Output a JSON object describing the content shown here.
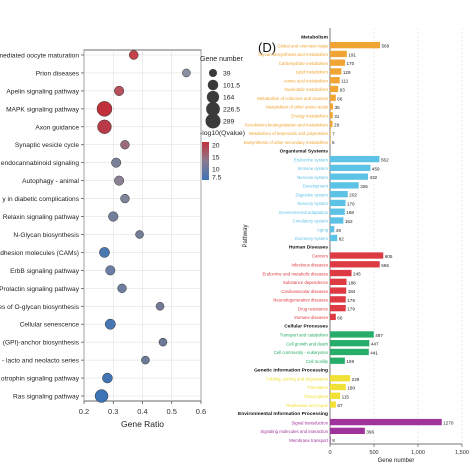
{
  "chart_data": [
    {
      "type": "scatter",
      "xlabel": "Gene Ratio",
      "xlim": [
        0.2,
        0.6
      ],
      "xticks": [
        "0.2",
        "0.3",
        "0.4",
        "0.5",
        "0.6"
      ],
      "grid": true,
      "legend_size": {
        "title": "Gene number",
        "entries": [
          {
            "label": "39",
            "value": 39
          },
          {
            "label": "101.5",
            "value": 101.5
          },
          {
            "label": "164",
            "value": 164
          },
          {
            "label": "226.5",
            "value": 226.5
          },
          {
            "label": "289",
            "value": 289
          }
        ]
      },
      "legend_color": {
        "title": "-log10(Qvalue)",
        "ticks": [
          "20",
          "15",
          "10",
          "7.5"
        ],
        "low_color": "#3b74b6",
        "high_color": "#c0313b"
      },
      "points": [
        {
          "pathway": "mediated oocyte maturation",
          "ratio": 0.37,
          "size": 60,
          "color": "#c4434a"
        },
        {
          "pathway": "Prion diseases",
          "ratio": 0.55,
          "size": 39,
          "color": "#8a8fa2"
        },
        {
          "pathway": "Apelin signaling pathway",
          "ratio": 0.32,
          "size": 75,
          "color": "#b5505c"
        },
        {
          "pathway": "MAPK signaling pathway",
          "ratio": 0.27,
          "size": 289,
          "color": "#c0313b"
        },
        {
          "pathway": "Axon guidance",
          "ratio": 0.27,
          "size": 230,
          "color": "#b83a48"
        },
        {
          "pathway": "Synaptic vesicle cycle",
          "ratio": 0.34,
          "size": 55,
          "color": "#9a6b78"
        },
        {
          "pathway": "endocannabinoid signaling",
          "ratio": 0.31,
          "size": 70,
          "color": "#7a8099"
        },
        {
          "pathway": "Autophagy - animal",
          "ratio": 0.32,
          "size": 70,
          "color": "#8a8196"
        },
        {
          "pathway": "y in diabetic complications",
          "ratio": 0.34,
          "size": 55,
          "color": "#7f8599"
        },
        {
          "pathway": "Relaxin signaling pathway",
          "ratio": 0.3,
          "size": 75,
          "color": "#737e9a"
        },
        {
          "pathway": "N-Glycan biosynthesis",
          "ratio": 0.39,
          "size": 39,
          "color": "#747d98"
        },
        {
          "pathway": "dhesion molecules (CAMs)",
          "ratio": 0.27,
          "size": 90,
          "color": "#4a78b0"
        },
        {
          "pathway": "ErbB signaling pathway",
          "ratio": 0.29,
          "size": 70,
          "color": "#6b7fa6"
        },
        {
          "pathway": "Prolactin signaling pathway",
          "ratio": 0.33,
          "size": 55,
          "color": "#6e7ea0"
        },
        {
          "pathway": "es of O-glycan biosynthesis",
          "ratio": 0.46,
          "size": 39,
          "color": "#727b96"
        },
        {
          "pathway": "Cellular senescence",
          "ratio": 0.29,
          "size": 95,
          "color": "#4677b4"
        },
        {
          "pathway": "(GPI)-anchor biosynthesis",
          "ratio": 0.47,
          "size": 39,
          "color": "#6c7898"
        },
        {
          "pathway": "- lacto and neolacto series",
          "ratio": 0.41,
          "size": 39,
          "color": "#6e7a99"
        },
        {
          "pathway": "otrophin signaling pathway",
          "ratio": 0.28,
          "size": 85,
          "color": "#4274b5"
        },
        {
          "pathway": "Ras signaling pathway",
          "ratio": 0.26,
          "size": 190,
          "color": "#3b74b6"
        }
      ]
    },
    {
      "type": "bar",
      "panel_label": "(D)",
      "xlabel": "Gene number",
      "ylabel": "Pathway",
      "xlim": [
        0,
        1500
      ],
      "xticks": [
        "0",
        "500",
        "1,000",
        "1,500"
      ],
      "groups": [
        {
          "name": "Metabolism",
          "color": "#f0a431",
          "bars": [
            {
              "label": "Global and overview maps",
              "value": 568
            },
            {
              "label": "Glycan biosynthesis and metabolism",
              "value": 191
            },
            {
              "label": "Carbohydrate metabolism",
              "value": 170
            },
            {
              "label": "Lipid metabolism",
              "value": 129
            },
            {
              "label": "Amino acid metabolism",
              "value": 111
            },
            {
              "label": "Nucleotide metabolism",
              "value": 93
            },
            {
              "label": "Metabolism of cofactors and vitamins",
              "value": 66
            },
            {
              "label": "Metabolism of other amino acids",
              "value": 35
            },
            {
              "label": "Energy metabolism",
              "value": 31
            },
            {
              "label": "Xenobiotics biodegradation and metabolism",
              "value": 29
            },
            {
              "label": "Metabolism of terpenoids and polyketides",
              "value": 7
            },
            {
              "label": "Biosynthesis of other secondary metabolites",
              "value": 5
            }
          ]
        },
        {
          "name": "Organismal Systems",
          "color": "#5cc2e6",
          "bars": [
            {
              "label": "Endocrine system",
              "value": 562
            },
            {
              "label": "Immune system",
              "value": 459
            },
            {
              "label": "Nervous system",
              "value": 432
            },
            {
              "label": "Development",
              "value": 326
            },
            {
              "label": "Digestive system",
              "value": 202
            },
            {
              "label": "Sensory system",
              "value": 176
            },
            {
              "label": "Environmental adaptation",
              "value": 168
            },
            {
              "label": "Circulatory system",
              "value": 152
            },
            {
              "label": "Aging",
              "value": 49
            },
            {
              "label": "Excretory system",
              "value": 82
            }
          ]
        },
        {
          "name": "Human Diseases",
          "color": "#de3a43",
          "bars": [
            {
              "label": "Cancers",
              "value": 605
            },
            {
              "label": "Infectious diseases",
              "value": 565
            },
            {
              "label": "Endocrine and metabolic diseases",
              "value": 245
            },
            {
              "label": "Substance dependence",
              "value": 188
            },
            {
              "label": "Cardiovascular diseases",
              "value": 184
            },
            {
              "label": "Neurodegenerative diseases",
              "value": 179
            },
            {
              "label": "Drug resistance",
              "value": 179
            },
            {
              "label": "Immune diseases",
              "value": 66
            }
          ]
        },
        {
          "name": "Cellular Processes",
          "color": "#27ad6a",
          "bars": [
            {
              "label": "Transport and catabolism",
              "value": 497
            },
            {
              "label": "Cell growth and death",
              "value": 447
            },
            {
              "label": "Cell community - eukaryotes",
              "value": 441
            },
            {
              "label": "Cell motility",
              "value": 169
            }
          ]
        },
        {
          "name": "Genetic Information Processing",
          "color": "#f1e036",
          "bars": [
            {
              "label": "Folding, sorting and degradation",
              "value": 229
            },
            {
              "label": "Translation",
              "value": 180
            },
            {
              "label": "Transcription",
              "value": 115
            },
            {
              "label": "Replication and repair",
              "value": 67
            }
          ]
        },
        {
          "name": "Environmental Information Processing",
          "color": "#a0329b",
          "bars": [
            {
              "label": "Signal transduction",
              "value": 1270
            },
            {
              "label": "Signaling molecules and interaction",
              "value": 396
            },
            {
              "label": "Membrane transport",
              "value": 8
            }
          ]
        }
      ]
    }
  ]
}
